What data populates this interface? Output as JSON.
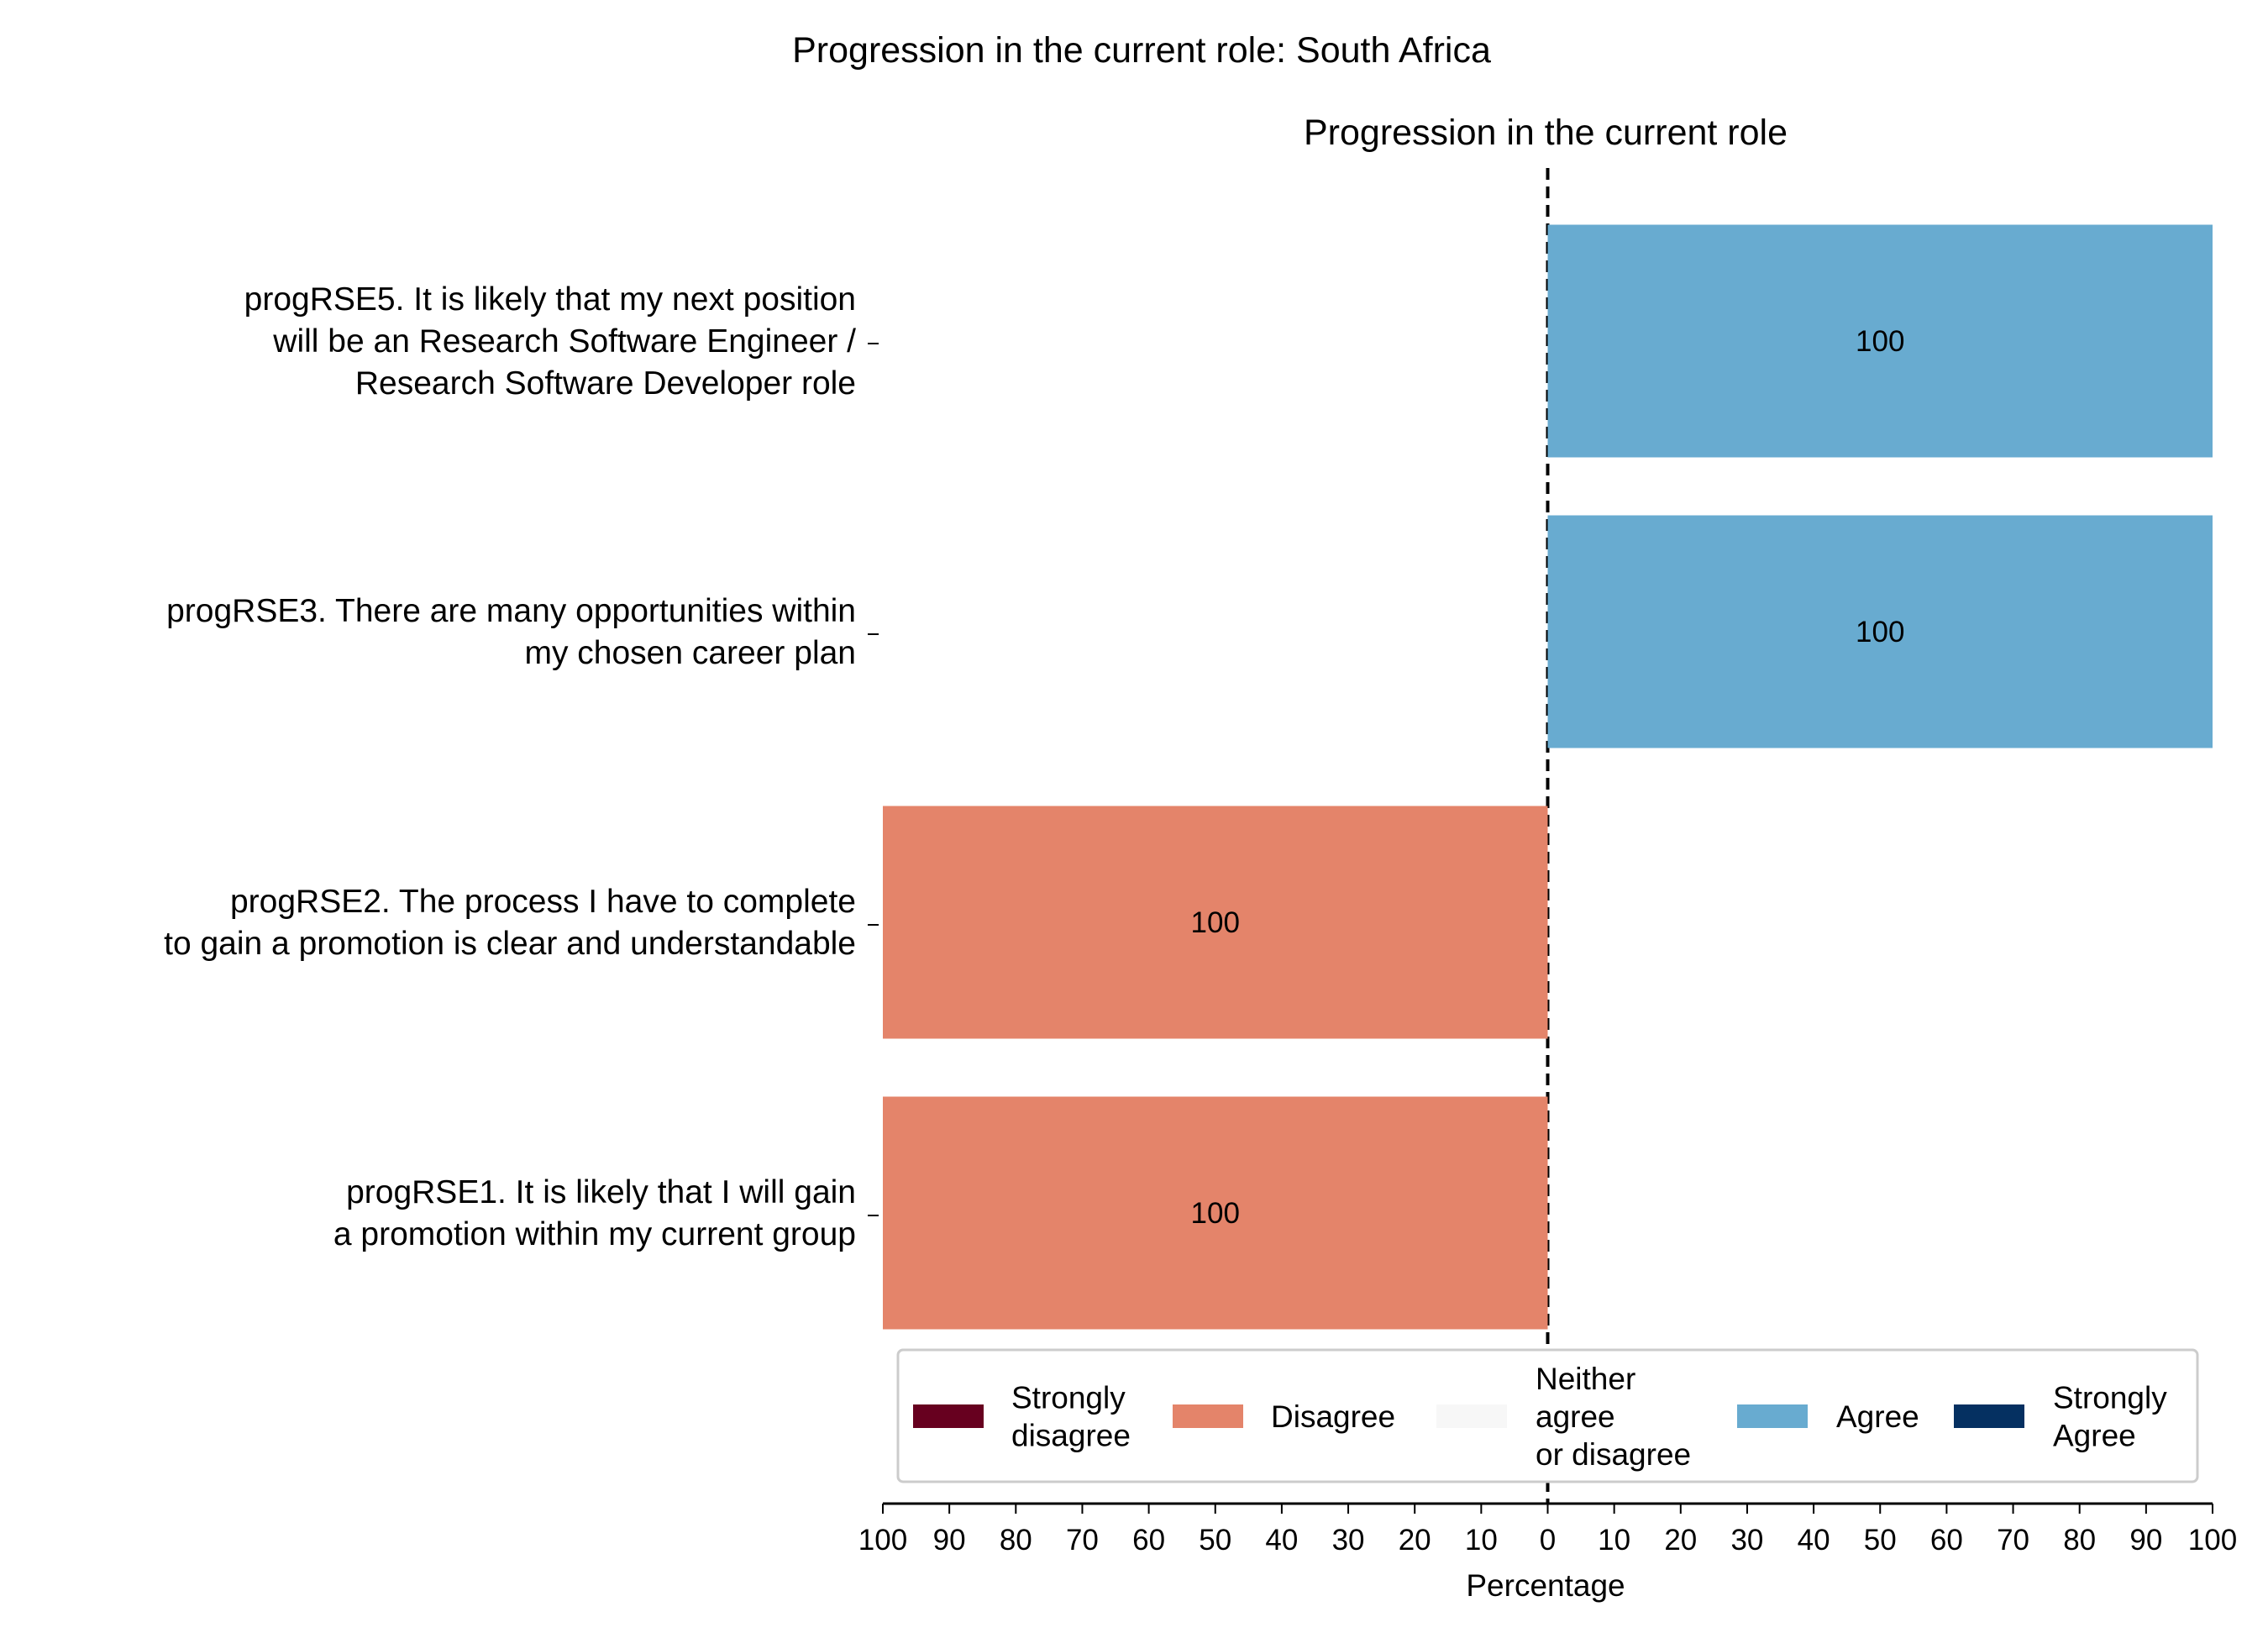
{
  "chart_data": {
    "type": "bar",
    "orientation": "horizontal-diverging",
    "suptitle": "Progression in the current role: South Africa",
    "title": "Progression in the current role",
    "xlabel": "Percentage",
    "xlim": [
      -100,
      100
    ],
    "xticks": [
      -100,
      -90,
      -80,
      -70,
      -60,
      -50,
      -40,
      -30,
      -20,
      -10,
      0,
      10,
      20,
      30,
      40,
      50,
      60,
      70,
      80,
      90,
      100
    ],
    "xtick_labels": [
      "100",
      "90",
      "80",
      "70",
      "60",
      "50",
      "40",
      "30",
      "20",
      "10",
      "0",
      "10",
      "20",
      "30",
      "40",
      "50",
      "60",
      "70",
      "80",
      "90",
      "100"
    ],
    "categories": [
      [
        "progRSE5. It is likely that my next position",
        "will be an Research Software Engineer /",
        "Research Software Developer role"
      ],
      [
        "progRSE3. There are many opportunities within",
        "my chosen career plan"
      ],
      [
        "progRSE2. The process I have to complete",
        "to gain a promotion is clear and understandable"
      ],
      [
        "progRSE1. It is likely that I will gain",
        "a promotion within my current group"
      ]
    ],
    "series": [
      {
        "name": "Strongly disagree",
        "label_lines": [
          "Strongly",
          "disagree"
        ],
        "color": "#67001f",
        "values": [
          0,
          0,
          0,
          0
        ]
      },
      {
        "name": "Disagree",
        "label_lines": [
          "Disagree"
        ],
        "color": "#e4846a",
        "values": [
          0,
          0,
          100,
          100
        ]
      },
      {
        "name": "Neither agree or disagree",
        "label_lines": [
          "Neither",
          "agree",
          "or disagree"
        ],
        "color": "#f7f7f7",
        "values": [
          0,
          0,
          0,
          0
        ]
      },
      {
        "name": "Agree",
        "label_lines": [
          "Agree"
        ],
        "color": "#68abd0",
        "values": [
          100,
          100,
          0,
          0
        ]
      },
      {
        "name": "Strongly Agree",
        "label_lines": [
          "Strongly",
          "Agree"
        ],
        "color": "#053061",
        "values": [
          0,
          0,
          0,
          0
        ]
      }
    ],
    "bar_labels": [
      {
        "category_index": 0,
        "text": "100"
      },
      {
        "category_index": 1,
        "text": "100"
      },
      {
        "category_index": 2,
        "text": "100"
      },
      {
        "category_index": 3,
        "text": "100"
      }
    ],
    "legend_position": "bottom",
    "grid": false,
    "center_line": "dashed"
  }
}
